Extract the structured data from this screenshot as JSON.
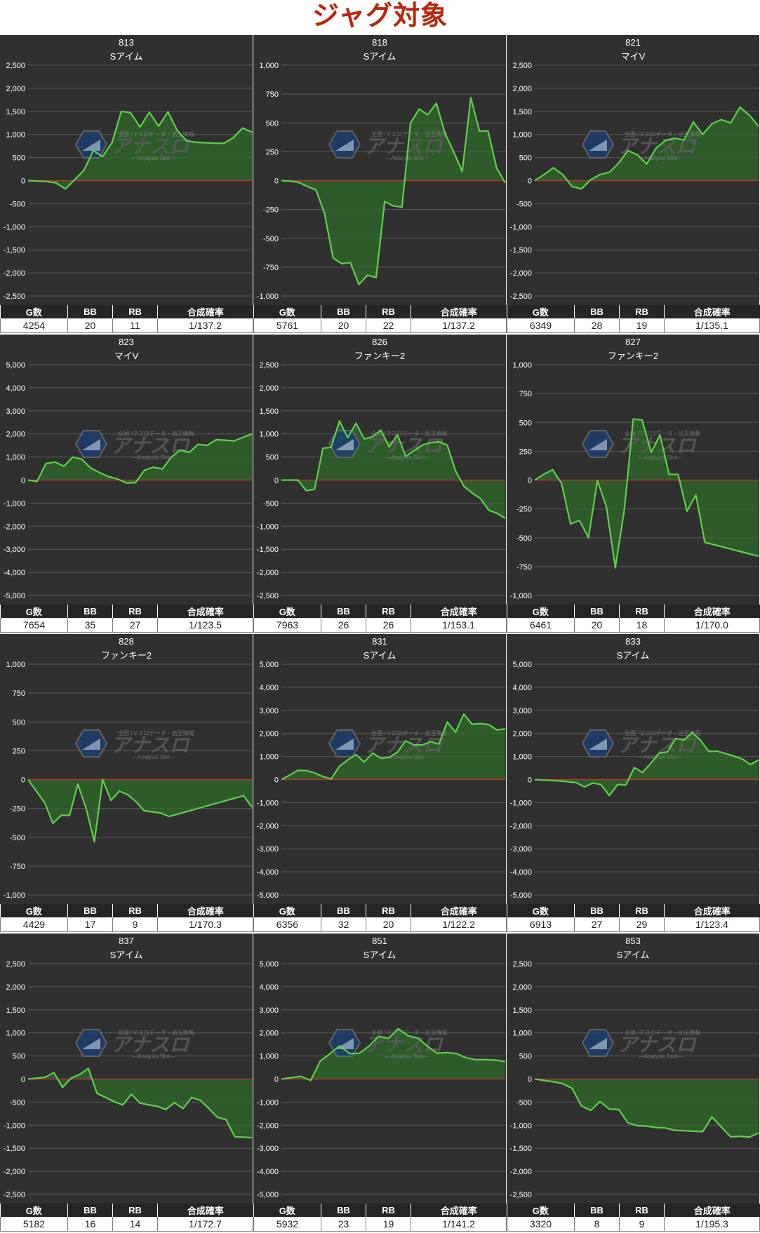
{
  "page_title": "ジャグ対象",
  "watermark": {
    "text": "アナスロ",
    "sub": "—Analysis Slot—",
    "tagline": "全国 !マスロデータ・出玉情報"
  },
  "stat_headers": [
    "G数",
    "BB",
    "RB",
    "合成確率"
  ],
  "colors": {
    "panel_bg": "#303030",
    "line": "#5fcf4c",
    "fill": "#2f6a2a",
    "zero_line": "#c0392b",
    "grid": "#5a5a5a",
    "title": "#b8260c"
  },
  "chart_data": [
    {
      "type": "area",
      "title": "813",
      "subtitle": "Sアイム",
      "ylim": [
        -2500,
        2500
      ],
      "yticks": [
        2500,
        2000,
        1500,
        1000,
        500,
        0,
        -500,
        -1000,
        -1500,
        -2000,
        -2500
      ],
      "values": [
        0,
        -10,
        -20,
        -50,
        -180,
        20,
        230,
        650,
        520,
        820,
        1500,
        1470,
        1160,
        1480,
        1180,
        1490,
        1080,
        860,
        830,
        820,
        810,
        810,
        930,
        1140,
        1050
      ],
      "stats": [
        "4254",
        "20",
        "11",
        "1/137.2"
      ]
    },
    {
      "type": "area",
      "title": "818",
      "subtitle": "Sアイム",
      "ylim": [
        -1000,
        1000
      ],
      "yticks": [
        1000,
        750,
        500,
        250,
        0,
        -250,
        -500,
        -750,
        -1000
      ],
      "values": [
        0,
        -5,
        -15,
        -50,
        -80,
        -280,
        -670,
        -720,
        -710,
        -900,
        -820,
        -840,
        -180,
        -220,
        -230,
        500,
        620,
        570,
        670,
        410,
        250,
        80,
        720,
        430,
        430,
        110,
        -20
      ],
      "stats": [
        "5761",
        "20",
        "22",
        "1/137.2"
      ]
    },
    {
      "type": "area",
      "title": "821",
      "subtitle": "マイV",
      "ylim": [
        -2500,
        2500
      ],
      "yticks": [
        2500,
        2000,
        1500,
        1000,
        500,
        0,
        -500,
        -1000,
        -1500,
        -2000,
        -2500
      ],
      "values": [
        0,
        130,
        280,
        130,
        -130,
        -180,
        20,
        130,
        180,
        380,
        650,
        560,
        360,
        700,
        870,
        920,
        880,
        1270,
        1000,
        1230,
        1320,
        1250,
        1590,
        1420,
        1180
      ],
      "stats": [
        "6349",
        "28",
        "19",
        "1/135.1"
      ]
    },
    {
      "type": "area",
      "title": "823",
      "subtitle": "マイV",
      "ylim": [
        -5000,
        5000
      ],
      "yticks": [
        5000,
        4000,
        3000,
        2000,
        1000,
        0,
        -1000,
        -2000,
        -3000,
        -4000,
        -5000
      ],
      "values": [
        0,
        -60,
        720,
        780,
        600,
        1000,
        900,
        520,
        320,
        150,
        50,
        -130,
        -110,
        430,
        560,
        480,
        1000,
        1300,
        1200,
        1550,
        1500,
        1750,
        1730,
        1700,
        1850,
        2000
      ],
      "stats": [
        "7654",
        "35",
        "27",
        "1/123.5"
      ]
    },
    {
      "type": "area",
      "title": "826",
      "subtitle": "ファンキー2",
      "ylim": [
        -2500,
        2500
      ],
      "yticks": [
        2500,
        2000,
        1500,
        1000,
        500,
        0,
        -500,
        -1000,
        -1500,
        -2000,
        -2500
      ],
      "values": [
        0,
        0,
        0,
        -230,
        -200,
        690,
        710,
        1280,
        920,
        1230,
        890,
        940,
        1080,
        720,
        980,
        510,
        640,
        760,
        810,
        830,
        760,
        200,
        -130,
        -280,
        -400,
        -650,
        -720,
        -830
      ],
      "stats": [
        "7963",
        "26",
        "26",
        "1/153.1"
      ]
    },
    {
      "type": "area",
      "title": "827",
      "subtitle": "ファンキー2",
      "ylim": [
        -1000,
        1000
      ],
      "yticks": [
        1000,
        750,
        500,
        250,
        0,
        -250,
        -500,
        -750,
        -1000
      ],
      "values": [
        0,
        50,
        90,
        -30,
        -380,
        -350,
        -500,
        -5,
        -230,
        -760,
        -260,
        530,
        520,
        240,
        390,
        50,
        50,
        -270,
        -130,
        -540,
        -560,
        -580,
        -600,
        -620,
        -640,
        -660
      ],
      "stats": [
        "6461",
        "20",
        "18",
        "1/170.0"
      ]
    },
    {
      "type": "area",
      "title": "828",
      "subtitle": "ファンキー2",
      "ylim": [
        -1000,
        1000
      ],
      "yticks": [
        1000,
        750,
        500,
        250,
        0,
        -250,
        -500,
        -750,
        -1000
      ],
      "values": [
        0,
        -100,
        -200,
        -380,
        -310,
        -310,
        -40,
        -250,
        -540,
        0,
        -180,
        -100,
        -130,
        -190,
        -270,
        -280,
        -290,
        -320,
        -300,
        -280,
        -260,
        -240,
        -220,
        -200,
        -180,
        -160,
        -140,
        -240
      ],
      "stats": [
        "4429",
        "17",
        "9",
        "1/170.3"
      ]
    },
    {
      "type": "area",
      "title": "831",
      "subtitle": "Sアイム",
      "ylim": [
        -5000,
        5000
      ],
      "yticks": [
        5000,
        4000,
        3000,
        2000,
        1000,
        0,
        -1000,
        -2000,
        -3000,
        -4000,
        -5000
      ],
      "values": [
        0,
        190,
        400,
        390,
        290,
        130,
        30,
        570,
        850,
        1080,
        760,
        1150,
        920,
        960,
        1190,
        1680,
        1500,
        1500,
        1640,
        1540,
        2500,
        2050,
        2840,
        2400,
        2430,
        2380,
        2150,
        2200
      ],
      "stats": [
        "6356",
        "32",
        "20",
        "1/122.2"
      ]
    },
    {
      "type": "area",
      "title": "833",
      "subtitle": "Sアイム",
      "ylim": [
        -5000,
        5000
      ],
      "yticks": [
        5000,
        4000,
        3000,
        2000,
        1000,
        0,
        -1000,
        -2000,
        -3000,
        -4000,
        -5000
      ],
      "values": [
        0,
        -20,
        -40,
        -60,
        -90,
        -130,
        -320,
        -150,
        -220,
        -690,
        -220,
        -230,
        520,
        310,
        700,
        1150,
        1200,
        1780,
        1720,
        2030,
        1700,
        1220,
        1230,
        1130,
        1020,
        900,
        650,
        850
      ],
      "stats": [
        "6913",
        "27",
        "29",
        "1/123.4"
      ]
    },
    {
      "type": "area",
      "title": "837",
      "subtitle": "Sアイム",
      "ylim": [
        -2500,
        2500
      ],
      "yticks": [
        2500,
        2000,
        1500,
        1000,
        500,
        0,
        -500,
        -1000,
        -1500,
        -2000,
        -2500
      ],
      "values": [
        0,
        20,
        40,
        140,
        -180,
        20,
        100,
        230,
        -310,
        -400,
        -490,
        -560,
        -330,
        -520,
        -560,
        -590,
        -660,
        -510,
        -640,
        -400,
        -460,
        -640,
        -830,
        -880,
        -1250,
        -1260,
        -1270
      ],
      "stats": [
        "5182",
        "16",
        "14",
        "1/172.7"
      ]
    },
    {
      "type": "area",
      "title": "851",
      "subtitle": "Sアイム",
      "ylim": [
        -5000,
        5000
      ],
      "yticks": [
        5000,
        4000,
        3000,
        2000,
        1000,
        0,
        -1000,
        -2000,
        -3000,
        -4000,
        -5000
      ],
      "values": [
        0,
        60,
        120,
        -60,
        780,
        1100,
        1440,
        1100,
        1120,
        1430,
        1850,
        1760,
        2180,
        1880,
        1780,
        1430,
        1120,
        1150,
        1100,
        920,
        840,
        840,
        820,
        760
      ],
      "stats": [
        "5932",
        "23",
        "19",
        "1/141.2"
      ]
    },
    {
      "type": "area",
      "title": "853",
      "subtitle": "Sアイム",
      "ylim": [
        -2500,
        2500
      ],
      "yticks": [
        2500,
        2000,
        1500,
        1000,
        500,
        0,
        -500,
        -1000,
        -1500,
        -2000,
        -2500
      ],
      "values": [
        0,
        -30,
        -60,
        -100,
        -200,
        -580,
        -680,
        -490,
        -650,
        -660,
        -950,
        -1010,
        -1020,
        -1050,
        -1060,
        -1110,
        -1120,
        -1130,
        -1140,
        -820,
        -1040,
        -1250,
        -1240,
        -1260,
        -1170
      ],
      "stats": [
        "3320",
        "8",
        "9",
        "1/195.3"
      ]
    }
  ]
}
